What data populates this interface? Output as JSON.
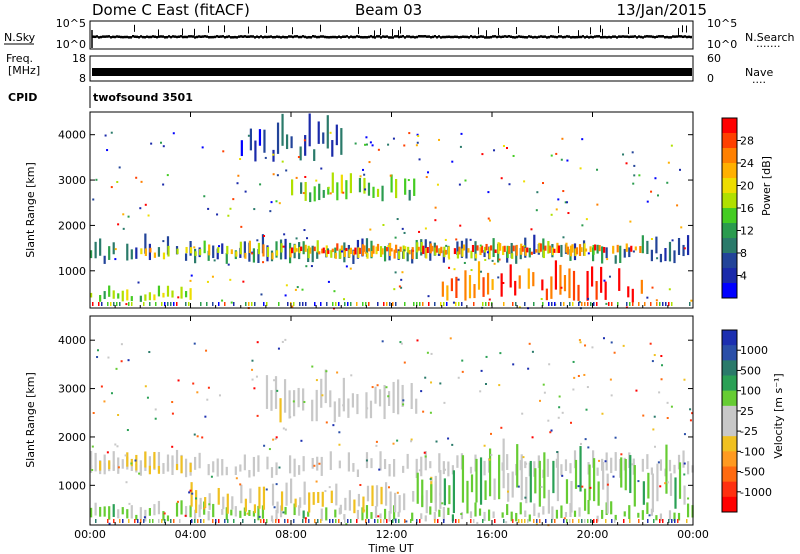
{
  "header": {
    "title_left": "Dome C East (fitACF)",
    "title_center": "Beam 03",
    "title_right": "13/Jan/2015"
  },
  "nsky_panel": {
    "left_label": "N.Sky",
    "left_ticks": [
      "10^5",
      "10^0"
    ],
    "right_ticks": [
      "10^5",
      "10^0"
    ],
    "right_label": "N.Search",
    "right_dots": "·······"
  },
  "freq_panel": {
    "left_label_line1": "Freq.",
    "left_label_line2": "[MHz]",
    "left_ticks": [
      "18",
      "8"
    ],
    "right_ticks": [
      "60",
      "0"
    ],
    "right_label": "Nave",
    "right_dots": "····"
  },
  "cpid": {
    "label": "CPID",
    "value": "twofsound 3501"
  },
  "power_panel": {
    "ylabel": "Slant Range [km]",
    "yticks": [
      "4000",
      "3000",
      "2000",
      "1000"
    ],
    "colorbar_label": "Power [dB]",
    "colorbar_ticks": [
      "28",
      "24",
      "20",
      "16",
      "12",
      "8",
      "4"
    ],
    "colorbar_colors": [
      "#ff0000",
      "#ff4000",
      "#ff8000",
      "#ffb000",
      "#eedd00",
      "#b0e000",
      "#44cc22",
      "#2a9b4e",
      "#2a7a6a",
      "#224499",
      "#1a2aaa",
      "#0000ff"
    ]
  },
  "velocity_panel": {
    "ylabel": "Slant Range [km]",
    "yticks": [
      "4000",
      "3000",
      "2000",
      "1000"
    ],
    "colorbar_label": "Velocity [m s⁻¹]",
    "colorbar_ticks": [
      "1000",
      "500",
      "100",
      "25",
      "-25",
      "-100",
      "-500",
      "-1000"
    ],
    "colorbar_colors": [
      "#1c2fb0",
      "#2a4fa8",
      "#2a7a6a",
      "#2aa055",
      "#66cc33",
      "#c8c8c8",
      "#c8c8c8",
      "#f0c020",
      "#ff9a20",
      "#ff6a10",
      "#ff3010",
      "#ff0000"
    ]
  },
  "x_axis": {
    "ticks": [
      "00:00",
      "04:00",
      "08:00",
      "12:00",
      "16:00",
      "20:00",
      "00:00"
    ],
    "label": "Time UT"
  },
  "chart_data": {
    "type": "heatmap",
    "title": "Dome C East (fitACF)",
    "subtitle": "Beam 03",
    "date": "13/Jan/2015",
    "xlabel": "Time UT",
    "ylabel": "Slant Range [km]",
    "x_range_hours": [
      0,
      24
    ],
    "ylim": [
      180,
      4500
    ],
    "panels": [
      {
        "name": "Power [dB]",
        "color_scale": [
          0,
          32
        ],
        "bands": [
          {
            "t": [
              0,
              24
            ],
            "range": [
              1150,
              1750
            ],
            "value": 8
          },
          {
            "t": [
              2,
              20
            ],
            "range": [
              1250,
              1650
            ],
            "value": 20
          },
          {
            "t": [
              8,
              22
            ],
            "range": [
              1350,
              1600
            ],
            "value": 26
          },
          {
            "t": [
              0,
              4
            ],
            "range": [
              300,
              650
            ],
            "value": 16
          },
          {
            "t": [
              14,
              22
            ],
            "range": [
              300,
              1200
            ],
            "value": 28
          },
          {
            "t": [
              8,
              13
            ],
            "range": [
              2500,
              3100
            ],
            "value": 14
          },
          {
            "t": [
              6,
              10
            ],
            "range": [
              3400,
              4400
            ],
            "value": 6
          }
        ]
      },
      {
        "name": "Velocity [m s-1]",
        "color_scale": [
          -1000,
          1000
        ],
        "bands": [
          {
            "t": [
              0,
              24
            ],
            "range": [
              1150,
              1700
            ],
            "value": 0
          },
          {
            "t": [
              0,
              4
            ],
            "range": [
              1200,
              1700
            ],
            "value": -150
          },
          {
            "t": [
              0,
              24
            ],
            "range": [
              250,
              650
            ],
            "value": 200
          },
          {
            "t": [
              4,
              14
            ],
            "range": [
              400,
              1100
            ],
            "value": -120
          },
          {
            "t": [
              13,
              24
            ],
            "range": [
              400,
              1800
            ],
            "value": 250
          },
          {
            "t": [
              7,
              13
            ],
            "range": [
              2300,
              3300
            ],
            "value": -60
          }
        ]
      }
    ]
  }
}
